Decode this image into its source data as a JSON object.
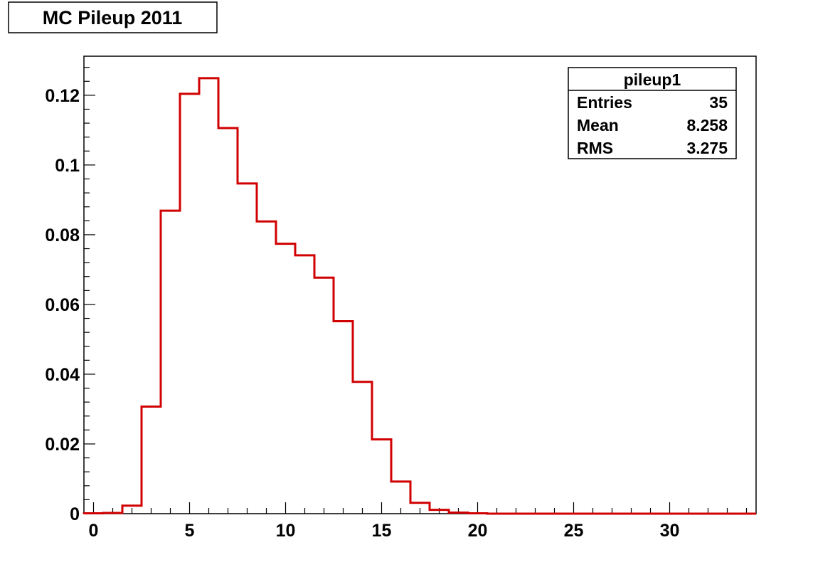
{
  "chart_data": {
    "type": "histogram",
    "title": "MC Pileup 2011",
    "xlabel": "",
    "ylabel": "",
    "xlim": [
      -0.5,
      34.5
    ],
    "ylim": [
      0,
      0.1312
    ],
    "x_ticks": [
      0,
      5,
      10,
      15,
      20,
      25,
      30
    ],
    "x_tick_labels": [
      "0",
      "5",
      "10",
      "15",
      "20",
      "25",
      "30"
    ],
    "y_ticks": [
      0,
      0.02,
      0.04,
      0.06,
      0.08,
      0.1,
      0.12
    ],
    "y_tick_labels": [
      "0",
      "0.02",
      "0.04",
      "0.06",
      "0.08",
      "0.1",
      "0.12"
    ],
    "line_color": "#d00000",
    "bins": {
      "low_edges": [
        -0.5,
        0.5,
        1.5,
        2.5,
        3.5,
        4.5,
        5.5,
        6.5,
        7.5,
        8.5,
        9.5,
        10.5,
        11.5,
        12.5,
        13.5,
        14.5,
        15.5,
        16.5,
        17.5,
        18.5,
        19.5,
        20.5,
        21.5,
        22.5,
        23.5,
        24.5,
        25.5,
        26.5,
        27.5,
        28.5,
        29.5,
        30.5,
        31.5,
        32.5,
        33.5
      ],
      "values": [
        0.0001,
        0.0002,
        0.0023,
        0.0307,
        0.0869,
        0.1204,
        0.1249,
        0.1106,
        0.0947,
        0.0838,
        0.0774,
        0.0741,
        0.0677,
        0.0552,
        0.0378,
        0.0213,
        0.0092,
        0.0031,
        0.0011,
        0.0003,
        0.0001,
        0,
        0,
        0,
        0,
        0,
        0,
        0,
        0,
        0,
        0,
        0,
        0,
        0,
        0
      ]
    },
    "stats_box": {
      "name": "pileup1",
      "rows": [
        {
          "label": "Entries",
          "value": "35"
        },
        {
          "label": "Mean",
          "value": "8.258"
        },
        {
          "label": "RMS",
          "value": "3.275"
        }
      ]
    }
  }
}
